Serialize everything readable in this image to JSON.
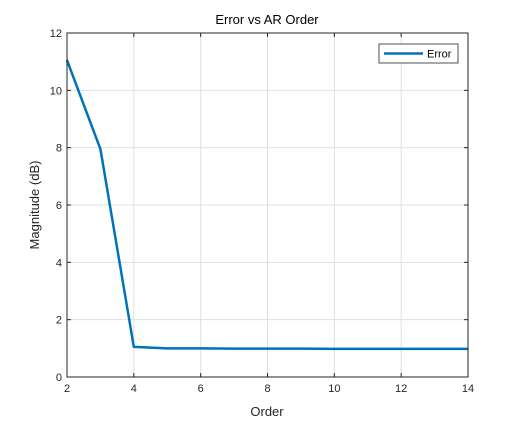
{
  "chart_data": {
    "type": "line",
    "title": "Error vs AR Order",
    "xlabel": "Order",
    "ylabel": "Magnitude (dB)",
    "xlim": [
      2,
      14
    ],
    "ylim": [
      0,
      12
    ],
    "xticks": [
      2,
      4,
      6,
      8,
      10,
      12,
      14
    ],
    "yticks": [
      0,
      2,
      4,
      6,
      8,
      10,
      12
    ],
    "grid": true,
    "legend_position": "top-right",
    "series": [
      {
        "name": "Error",
        "color": "#0072BD",
        "x": [
          2,
          3,
          4,
          5,
          6,
          7,
          8,
          9,
          10,
          11,
          12,
          13,
          14
        ],
        "y": [
          11.05,
          7.95,
          1.05,
          1.0,
          1.0,
          0.99,
          0.99,
          0.99,
          0.98,
          0.98,
          0.98,
          0.98,
          0.98
        ]
      }
    ]
  }
}
